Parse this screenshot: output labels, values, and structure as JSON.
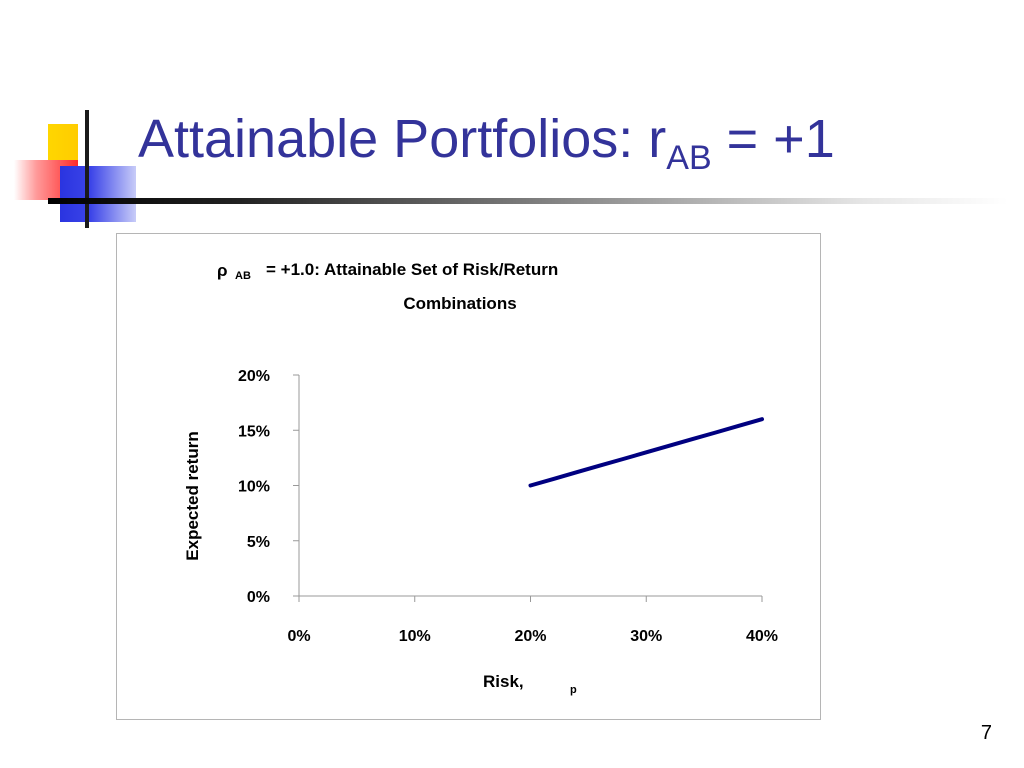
{
  "slide": {
    "title_main": "Attainable Portfolios: r",
    "title_sub": "AB",
    "title_tail": " = +1",
    "page_number": "7"
  },
  "colors": {
    "title": "#33339a",
    "line": "#000080",
    "deco_yellow": "#ffcc00",
    "deco_red": "#ff2a2a",
    "deco_blue": "#2a34e0"
  },
  "chart_data": {
    "type": "line",
    "title_symbol": "ρ",
    "title_sub": "AB",
    "title_line1": "= +1.0:  Attainable Set of Risk/Return",
    "title_line2": "Combinations",
    "xlabel": "Risk,",
    "xlabel_sub": "p",
    "ylabel": "Expected return",
    "xlim": [
      0,
      0.4
    ],
    "ylim": [
      0,
      0.2
    ],
    "x_ticks": [
      "0%",
      "10%",
      "20%",
      "30%",
      "40%"
    ],
    "y_ticks": [
      "0%",
      "5%",
      "10%",
      "15%",
      "20%"
    ],
    "grid": false,
    "legend": "none",
    "series": [
      {
        "x": [
          0.2,
          0.22,
          0.24,
          0.26,
          0.28,
          0.3,
          0.32,
          0.34,
          0.36,
          0.38,
          0.4
        ],
        "y": [
          0.1,
          0.106,
          0.112,
          0.118,
          0.124,
          0.13,
          0.136,
          0.142,
          0.148,
          0.154,
          0.16
        ]
      }
    ]
  }
}
